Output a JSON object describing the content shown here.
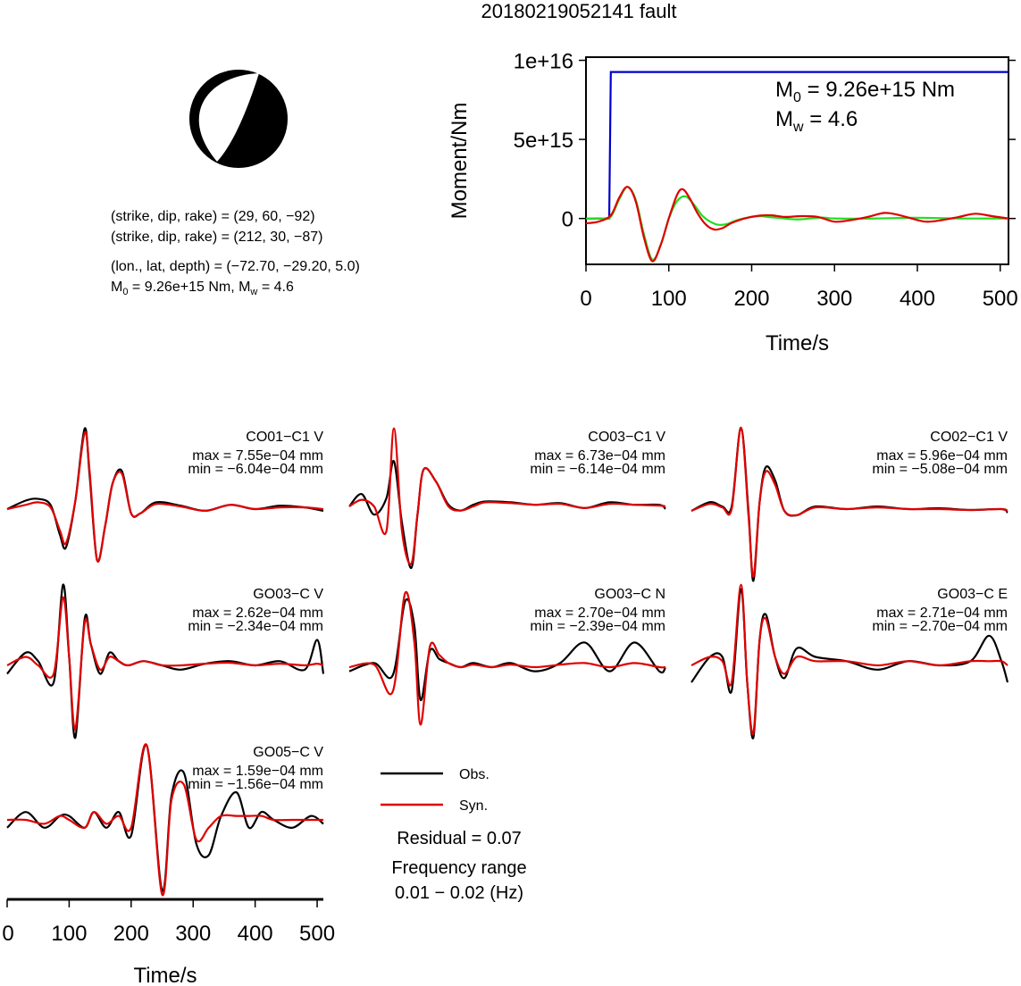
{
  "title": "20180219052141 fault",
  "mechanism": {
    "plane1": "(strike, dip, rake) = (29, 60, −92)",
    "plane2": "(strike, dip, rake) = (212, 30, −87)",
    "location": "(lon., lat, depth) = (−72.70, −29.20, 5.0)",
    "moment_line": {
      "m0_sym": "M",
      "m0_sub": "0",
      "m0_val": " = 9.26e+15 Nm, ",
      "mw_sym": "M",
      "mw_sub": "w",
      "mw_val": " = 4.6"
    }
  },
  "moment_panel": {
    "m0_label": {
      "sym": "M",
      "sub": "0",
      "val": " = 9.26e+15 Nm"
    },
    "mw_label": {
      "sym": "M",
      "sub": "w",
      "val": " = 4.6"
    }
  },
  "legend": {
    "obs": "Obs.",
    "syn": "Syn.",
    "residual": "Residual = 0.07",
    "freq_title": "Frequency range",
    "freq_range": "0.01 − 0.02 (Hz)"
  },
  "colors": {
    "obs": "#000000",
    "syn": "#e00000",
    "moment": "#0000cc",
    "green": "#22dd22"
  },
  "chart_data": [
    {
      "type": "line",
      "title": "",
      "xlabel": "Time/s",
      "ylabel": "Moment/Nm",
      "xlim": [
        0,
        510
      ],
      "ylim": [
        -2900000000000000.0,
        1.02e+16
      ],
      "xticks": [
        0,
        100,
        200,
        300,
        400,
        500
      ],
      "yticks": [
        {
          "v": 0,
          "label": "0"
        },
        {
          "v": 5000000000000000.0,
          "label": "5e+15"
        },
        {
          "v": 1e+16,
          "label": "1e+16"
        }
      ],
      "series": [
        {
          "color": "#0000cc",
          "x": [
            0,
            28,
            30,
            510
          ],
          "y": [
            0,
            0,
            9260000000000000.0,
            9260000000000000.0
          ]
        },
        {
          "color": "#22dd22",
          "x": [
            0,
            20,
            30,
            40,
            50,
            60,
            70,
            80,
            90,
            100,
            110,
            120,
            130,
            140,
            150,
            160,
            170,
            180,
            190,
            200,
            210,
            220,
            230,
            240,
            250,
            260,
            270,
            280,
            290,
            300,
            350,
            400,
            450,
            500,
            510
          ],
          "y": [
            0,
            0,
            100000000000000.0,
            1200000000000000.0,
            2000000000000000.0,
            1200000000000000.0,
            -1000000000000000.0,
            -2600000000000000.0,
            -1700000000000000.0,
            0,
            1100000000000000.0,
            1400000000000000.0,
            900000000000000.0,
            200000000000000.0,
            -200000000000000.0,
            -400000000000000.0,
            -350000000000000.0,
            -150000000000000.0,
            0,
            100000000000000.0,
            150000000000000.0,
            100000000000000.0,
            50000000000000.0,
            0,
            -50000000000000.0,
            -50000000000000.0,
            0,
            50000000000000.0,
            50000000000000.0,
            0,
            0,
            50000000000000.0,
            0,
            0,
            0
          ]
        },
        {
          "color": "#e00000",
          "x": [
            0,
            15,
            30,
            40,
            50,
            60,
            70,
            80,
            90,
            100,
            110,
            117,
            125,
            135,
            145,
            155,
            165,
            175,
            185,
            195,
            205,
            215,
            225,
            240,
            260,
            280,
            300,
            320,
            340,
            360,
            375,
            390,
            410,
            430,
            450,
            470,
            490,
            510
          ],
          "y": [
            -300000000000000.0,
            -200000000000000.0,
            200000000000000.0,
            1300000000000000.0,
            2000000000000000.0,
            1100000000000000.0,
            -1200000000000000.0,
            -2700000000000000.0,
            -1700000000000000.0,
            0,
            1500000000000000.0,
            1850000000000000.0,
            1300000000000000.0,
            300000000000000.0,
            -400000000000000.0,
            -700000000000000.0,
            -600000000000000.0,
            -300000000000000.0,
            -100000000000000.0,
            50000000000000.0,
            150000000000000.0,
            200000000000000.0,
            200000000000000.0,
            100000000000000.0,
            150000000000000.0,
            100000000000000.0,
            -200000000000000.0,
            -100000000000000.0,
            100000000000000.0,
            350000000000000.0,
            250000000000000.0,
            50000000000000.0,
            -200000000000000.0,
            -100000000000000.0,
            100000000000000.0,
            300000000000000.0,
            150000000000000.0,
            0
          ]
        }
      ]
    },
    {
      "type": "line",
      "label": "CO01−C1 V",
      "max": "max = 7.55e−04 mm",
      "min": "min = −6.04e−04 mm",
      "obs": {
        "x": [
          0,
          30,
          50,
          70,
          85,
          95,
          110,
          125,
          133,
          145,
          158,
          170,
          185,
          200,
          215,
          240,
          280,
          320,
          360,
          400,
          440,
          480,
          510
        ],
        "y": [
          0,
          0.1,
          0.12,
          0.05,
          -0.3,
          -0.45,
          0.1,
          0.95,
          0.4,
          -0.6,
          -0.2,
          0.3,
          0.45,
          -0.05,
          -0.05,
          0.08,
          0.04,
          -0.02,
          0.05,
          0,
          0.04,
          0.02,
          -0.02
        ]
      },
      "syn": {
        "x": [
          0,
          30,
          50,
          70,
          85,
          95,
          110,
          125,
          133,
          145,
          158,
          170,
          185,
          200,
          215,
          240,
          280,
          320,
          360,
          400,
          440,
          480,
          510
        ],
        "y": [
          0,
          0.05,
          0.08,
          0.02,
          -0.25,
          -0.4,
          0.1,
          0.9,
          0.45,
          -0.6,
          -0.2,
          0.3,
          0.42,
          -0.05,
          -0.05,
          0.06,
          0.03,
          -0.02,
          0.05,
          0,
          0.02,
          0.02,
          0
        ]
      }
    },
    {
      "type": "line",
      "label": "CO03−C1 V",
      "max": "max = 6.73e−04 mm",
      "min": "min = −6.14e−04 mm",
      "obs": {
        "x": [
          0,
          20,
          40,
          60,
          72,
          85,
          100,
          110,
          120,
          140,
          160,
          180,
          200,
          220,
          260,
          300,
          340,
          380,
          420,
          460,
          500,
          510
        ],
        "y": [
          0,
          0.15,
          -0.1,
          0.1,
          0.55,
          -0.2,
          -0.75,
          -0.1,
          0.45,
          0.3,
          0.02,
          -0.05,
          0.02,
          0.06,
          0.05,
          0.02,
          0.04,
          -0.02,
          0.05,
          0.02,
          0.02,
          -0.03
        ]
      },
      "syn": {
        "x": [
          0,
          20,
          40,
          60,
          72,
          85,
          100,
          110,
          120,
          140,
          160,
          180,
          200,
          220,
          260,
          300,
          340,
          380,
          420,
          460,
          500,
          510
        ],
        "y": [
          0,
          0.08,
          0.0,
          -0.3,
          0.95,
          -0.3,
          -0.7,
          -0.1,
          0.45,
          0.3,
          0.0,
          -0.05,
          0.0,
          0.05,
          0.04,
          0.02,
          0.03,
          -0.02,
          0.03,
          0.02,
          0.01,
          0
        ]
      }
    },
    {
      "type": "line",
      "label": "CO02−C1 V",
      "max": "max = 5.96e−04 mm",
      "min": "min = −5.08e−04 mm",
      "obs": {
        "x": [
          0,
          30,
          50,
          65,
          80,
          92,
          100,
          110,
          120,
          135,
          150,
          170,
          200,
          250,
          300,
          350,
          400,
          450,
          500,
          510
        ],
        "y": [
          0,
          0.1,
          0.05,
          0.05,
          0.95,
          0.0,
          -0.8,
          0.1,
          0.5,
          0.35,
          0.0,
          -0.05,
          0.05,
          0.02,
          0.05,
          0.02,
          0.03,
          0.01,
          0.02,
          -0.02
        ]
      },
      "syn": {
        "x": [
          0,
          30,
          50,
          65,
          80,
          92,
          100,
          110,
          120,
          135,
          150,
          170,
          200,
          250,
          300,
          350,
          400,
          450,
          500,
          510
        ],
        "y": [
          0,
          0.08,
          0.04,
          0.02,
          0.95,
          -0.05,
          -0.75,
          0.1,
          0.45,
          0.3,
          0.0,
          -0.05,
          0.04,
          0.02,
          0.04,
          0.02,
          0.02,
          0.01,
          0.02,
          0
        ]
      }
    },
    {
      "type": "line",
      "label": "GO03−C V",
      "max": "max = 2.62e−04 mm",
      "min": "min = −2.34e−04 mm",
      "obs": {
        "x": [
          0,
          30,
          50,
          75,
          90,
          100,
          110,
          125,
          135,
          150,
          165,
          180,
          195,
          220,
          250,
          280,
          320,
          360,
          400,
          440,
          480,
          500,
          510
        ],
        "y": [
          -0.1,
          0.15,
          0.05,
          -0.2,
          0.95,
          0.1,
          -0.85,
          0.55,
          0.25,
          -0.1,
          0.15,
          0.05,
          0.0,
          0.05,
          0.0,
          -0.05,
          0.02,
          0.05,
          0.0,
          0.05,
          -0.05,
          0.3,
          -0.1
        ]
      },
      "syn": {
        "x": [
          0,
          30,
          50,
          75,
          90,
          100,
          110,
          125,
          135,
          150,
          165,
          180,
          195,
          220,
          250,
          280,
          320,
          360,
          400,
          440,
          480,
          500,
          510
        ],
        "y": [
          0,
          0.1,
          0.0,
          -0.1,
          0.8,
          0.1,
          -0.75,
          0.5,
          0.25,
          -0.05,
          0.1,
          0.05,
          0.0,
          0.05,
          0.0,
          0.0,
          0.02,
          0.03,
          0.0,
          0.02,
          0.0,
          0.02,
          0
        ]
      }
    },
    {
      "type": "line",
      "label": "GO03−C N",
      "max": "max = 2.70e−04 mm",
      "min": "min = −2.39e−04 mm",
      "obs": {
        "x": [
          0,
          40,
          70,
          90,
          105,
          115,
          130,
          145,
          160,
          180,
          200,
          230,
          260,
          300,
          340,
          380,
          420,
          460,
          500,
          510
        ],
        "y": [
          -0.05,
          0.05,
          -0.1,
          0.8,
          0.5,
          -0.4,
          0.2,
          0.1,
          0.05,
          0.0,
          0.05,
          0.0,
          0.05,
          -0.05,
          0.05,
          0.3,
          -0.05,
          0.3,
          -0.05,
          0.0
        ]
      },
      "syn": {
        "x": [
          0,
          40,
          70,
          90,
          105,
          115,
          130,
          145,
          160,
          180,
          200,
          230,
          260,
          300,
          340,
          380,
          420,
          460,
          500,
          510
        ],
        "y": [
          0,
          0.03,
          -0.3,
          0.9,
          0.3,
          -0.7,
          0.25,
          0.15,
          0.05,
          0.0,
          0.03,
          0.0,
          0.03,
          0.0,
          0.03,
          0.05,
          0.0,
          0.05,
          0.0,
          0.0
        ]
      }
    },
    {
      "type": "line",
      "label": "GO03−C E",
      "max": "max = 2.71e−04 mm",
      "min": "min = −2.70e−04 mm",
      "obs": {
        "x": [
          0,
          30,
          50,
          65,
          80,
          90,
          100,
          110,
          120,
          135,
          150,
          170,
          200,
          250,
          300,
          350,
          400,
          450,
          480,
          500,
          510
        ],
        "y": [
          -0.2,
          0.1,
          0.1,
          -0.3,
          0.9,
          -0.2,
          -0.85,
          0.3,
          0.6,
          0.1,
          -0.15,
          0.2,
          0.1,
          0.05,
          -0.05,
          0.05,
          0.0,
          0.05,
          0.35,
          0.05,
          -0.2
        ]
      },
      "syn": {
        "x": [
          0,
          30,
          50,
          65,
          80,
          90,
          100,
          110,
          120,
          135,
          150,
          170,
          200,
          250,
          300,
          350,
          400,
          450,
          480,
          500,
          510
        ],
        "y": [
          0,
          0.1,
          0.05,
          -0.2,
          0.95,
          -0.2,
          -0.8,
          0.3,
          0.55,
          0.1,
          -0.1,
          0.1,
          0.05,
          0.05,
          0.0,
          0.05,
          0.0,
          0.05,
          0.05,
          0.05,
          0.0
        ]
      }
    },
    {
      "type": "line",
      "label": "GO05−C V",
      "max": "max = 1.59e−04 mm",
      "min": "min = −1.56e−04 mm",
      "xlabel": "Time/s",
      "xlim": [
        0,
        510
      ],
      "xticks": [
        0,
        100,
        200,
        300,
        400,
        500
      ],
      "obs": {
        "x": [
          0,
          30,
          60,
          85,
          100,
          125,
          140,
          160,
          180,
          200,
          225,
          250,
          265,
          285,
          305,
          325,
          345,
          370,
          390,
          410,
          430,
          460,
          490,
          510
        ],
        "y": [
          -0.1,
          0.1,
          -0.1,
          0.05,
          0.05,
          -0.1,
          0.1,
          -0.1,
          0.1,
          -0.2,
          0.95,
          -0.9,
          0.3,
          0.6,
          -0.3,
          -0.45,
          0.05,
          0.35,
          -0.1,
          0.1,
          0.0,
          -0.1,
          0.05,
          -0.05
        ]
      },
      "syn": {
        "x": [
          0,
          30,
          60,
          85,
          100,
          125,
          140,
          160,
          180,
          200,
          225,
          250,
          265,
          285,
          305,
          325,
          345,
          370,
          390,
          410,
          430,
          460,
          490,
          510
        ],
        "y": [
          0,
          0.0,
          -0.05,
          0.05,
          0.0,
          -0.1,
          0.1,
          -0.05,
          0.05,
          -0.1,
          0.95,
          -0.95,
          0.25,
          0.45,
          -0.25,
          -0.1,
          0.05,
          0.05,
          0.05,
          0.05,
          0.0,
          0.0,
          0.0,
          0.0
        ]
      }
    }
  ]
}
